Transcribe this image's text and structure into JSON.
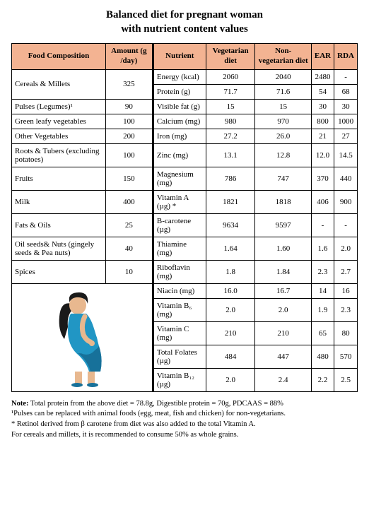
{
  "title_line1": "Balanced diet for pregnant woman",
  "title_line2": "with nutrient content values",
  "headers": {
    "food": "Food Composition",
    "amount": "Amount (g /day)",
    "nutrient": "Nutrient",
    "veg": "Vegetarian diet",
    "nonveg": "Non-vegetarian diet",
    "ear": "EAR",
    "rda": "RDA"
  },
  "header_bg": "#f3b392",
  "foods": [
    {
      "name": "Cereals & Millets",
      "amount": "325"
    },
    {
      "name": "Pulses (Legumes)¹",
      "amount": "90"
    },
    {
      "name": "Green leafy vegetables",
      "amount": "100"
    },
    {
      "name": "Other Vegetables",
      "amount": "200"
    },
    {
      "name": "Roots & Tubers (excluding potatoes)",
      "amount": "100"
    },
    {
      "name": "Fruits",
      "amount": "150"
    },
    {
      "name": "Milk",
      "amount": "400"
    },
    {
      "name": "Fats & Oils",
      "amount": "25"
    },
    {
      "name": "Oil seeds& Nuts (gingely seeds & Pea nuts)",
      "amount": "40"
    },
    {
      "name": "Spices",
      "amount": "10"
    }
  ],
  "nutrients": [
    {
      "name": "Energy (kcal)",
      "veg": "2060",
      "nonveg": "2040",
      "ear": "2480",
      "rda": "-"
    },
    {
      "name": "Protein (g)",
      "veg": "71.7",
      "nonveg": "71.6",
      "ear": "54",
      "rda": "68"
    },
    {
      "name": "Visible fat (g)",
      "veg": "15",
      "nonveg": "15",
      "ear": "30",
      "rda": "30"
    },
    {
      "name": "Calcium (mg)",
      "veg": "980",
      "nonveg": "970",
      "ear": "800",
      "rda": "1000"
    },
    {
      "name": "Iron (mg)",
      "veg": "27.2",
      "nonveg": "26.0",
      "ear": "21",
      "rda": "27"
    },
    {
      "name": "Zinc (mg)",
      "veg": "13.1",
      "nonveg": "12.8",
      "ear": "12.0",
      "rda": "14.5"
    },
    {
      "name": "Magnesium (mg)",
      "veg": "786",
      "nonveg": "747",
      "ear": "370",
      "rda": "440"
    },
    {
      "name": "Vitamin A (µg) *",
      "veg": "1821",
      "nonveg": "1818",
      "ear": "406",
      "rda": "900"
    },
    {
      "name": "B-carotene (µg)",
      "veg": "9634",
      "nonveg": "9597",
      "ear": "-",
      "rda": "-"
    },
    {
      "name": "Thiamine (mg)",
      "veg": "1.64",
      "nonveg": "1.60",
      "ear": "1.6",
      "rda": "2.0"
    },
    {
      "name": "Riboflavin (mg)",
      "veg": "1.8",
      "nonveg": "1.84",
      "ear": "2.3",
      "rda": "2.7"
    },
    {
      "name": "Niacin (mg)",
      "veg": "16.0",
      "nonveg": "16.7",
      "ear": "14",
      "rda": "16"
    },
    {
      "name": "Vitamin B₆ (mg)",
      "veg": "2.0",
      "nonveg": "2.0",
      "ear": "1.9",
      "rda": "2.3"
    },
    {
      "name": "Vitamin C (mg)",
      "veg": "210",
      "nonveg": "210",
      "ear": "65",
      "rda": "80"
    },
    {
      "name": "Total Folates (µg)",
      "veg": "484",
      "nonveg": "447",
      "ear": "480",
      "rda": "570"
    },
    {
      "name": "Vitamin B₁₂ (µg)",
      "veg": "2.0",
      "nonveg": "2.4",
      "ear": "2.2",
      "rda": "2.5"
    }
  ],
  "notes": {
    "label": "Note:",
    "line1": " Total protein from the above diet = 78.8g, Digestible protein = 70g, PDCAAS = 88%",
    "line2": "¹Pulses can be replaced with animal foods (egg, meat, fish and chicken) for non-vegetarians.",
    "line3": "* Retinol derived from β carotene from diet was also added to the total Vitamin A.",
    "line4": "For cereals and millets, it is recommended to consume 50% as whole grains."
  },
  "illustration": {
    "skin": "#e8b88f",
    "hair": "#1a1a1a",
    "dress": "#2196c4",
    "dress_dark": "#17719a"
  }
}
